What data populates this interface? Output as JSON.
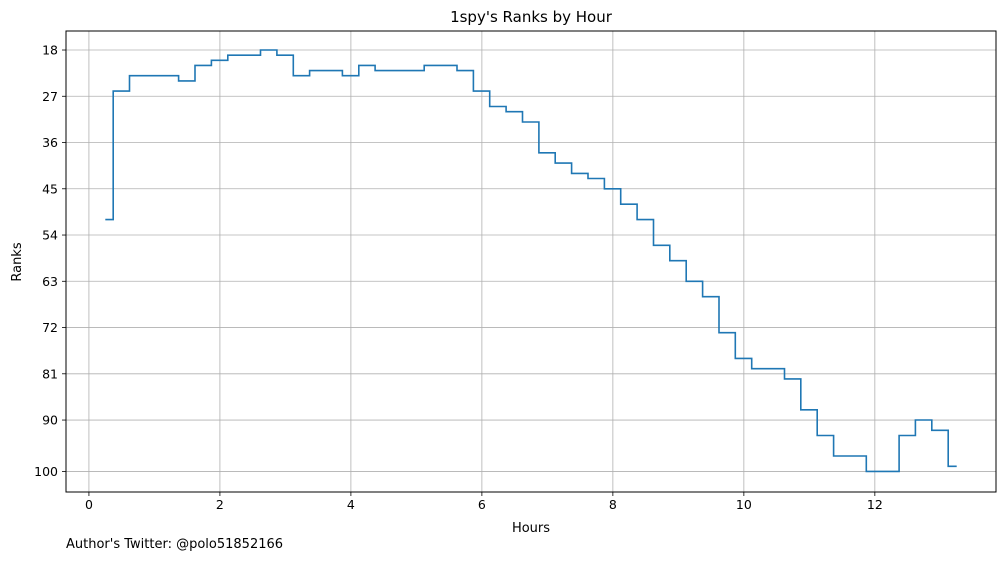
{
  "chart_data": {
    "type": "line",
    "drawstyle": "steps-post",
    "title": "1spy's Ranks by Hour",
    "xlabel": "Hours",
    "ylabel": "Ranks",
    "xlim": [
      -0.35,
      13.85
    ],
    "ylim": [
      104,
      14.3
    ],
    "y_inverted": true,
    "x_ticks": [
      0,
      2,
      4,
      6,
      8,
      10,
      12
    ],
    "y_ticks": [
      18,
      27,
      36,
      45,
      54,
      63,
      72,
      81,
      90,
      100
    ],
    "grid": true,
    "line_color": "#1f77b4",
    "series": [
      {
        "x": [
          0.25,
          0.37,
          0.62,
          0.87,
          1.12,
          1.37,
          1.62,
          1.87,
          2.12,
          2.37,
          2.62,
          2.87,
          3.12,
          3.37,
          3.62,
          3.87,
          4.12,
          4.37,
          4.62,
          4.87,
          5.12,
          5.37,
          5.62,
          5.87,
          6.12,
          6.37,
          6.62,
          6.87,
          7.12,
          7.37,
          7.62,
          7.87,
          8.12,
          8.37,
          8.62,
          8.87,
          9.12,
          9.37,
          9.62,
          9.87,
          10.12,
          10.37,
          10.62,
          10.87,
          11.12,
          11.37,
          11.62,
          11.87,
          12.12,
          12.37,
          12.62,
          12.87,
          13.12,
          13.25
        ],
        "y": [
          51,
          26,
          23,
          23,
          23,
          24,
          21,
          20,
          19,
          19,
          18,
          19,
          23,
          22,
          22,
          23,
          21,
          22,
          22,
          22,
          21,
          21,
          22,
          26,
          29,
          30,
          32,
          38,
          40,
          42,
          43,
          45,
          48,
          51,
          56,
          59,
          63,
          66,
          73,
          78,
          80,
          80,
          82,
          88,
          93,
          97,
          97,
          100,
          100,
          93,
          90,
          92,
          99,
          99
        ]
      }
    ]
  },
  "footer": {
    "note": "Author's Twitter: @polo51852166"
  }
}
